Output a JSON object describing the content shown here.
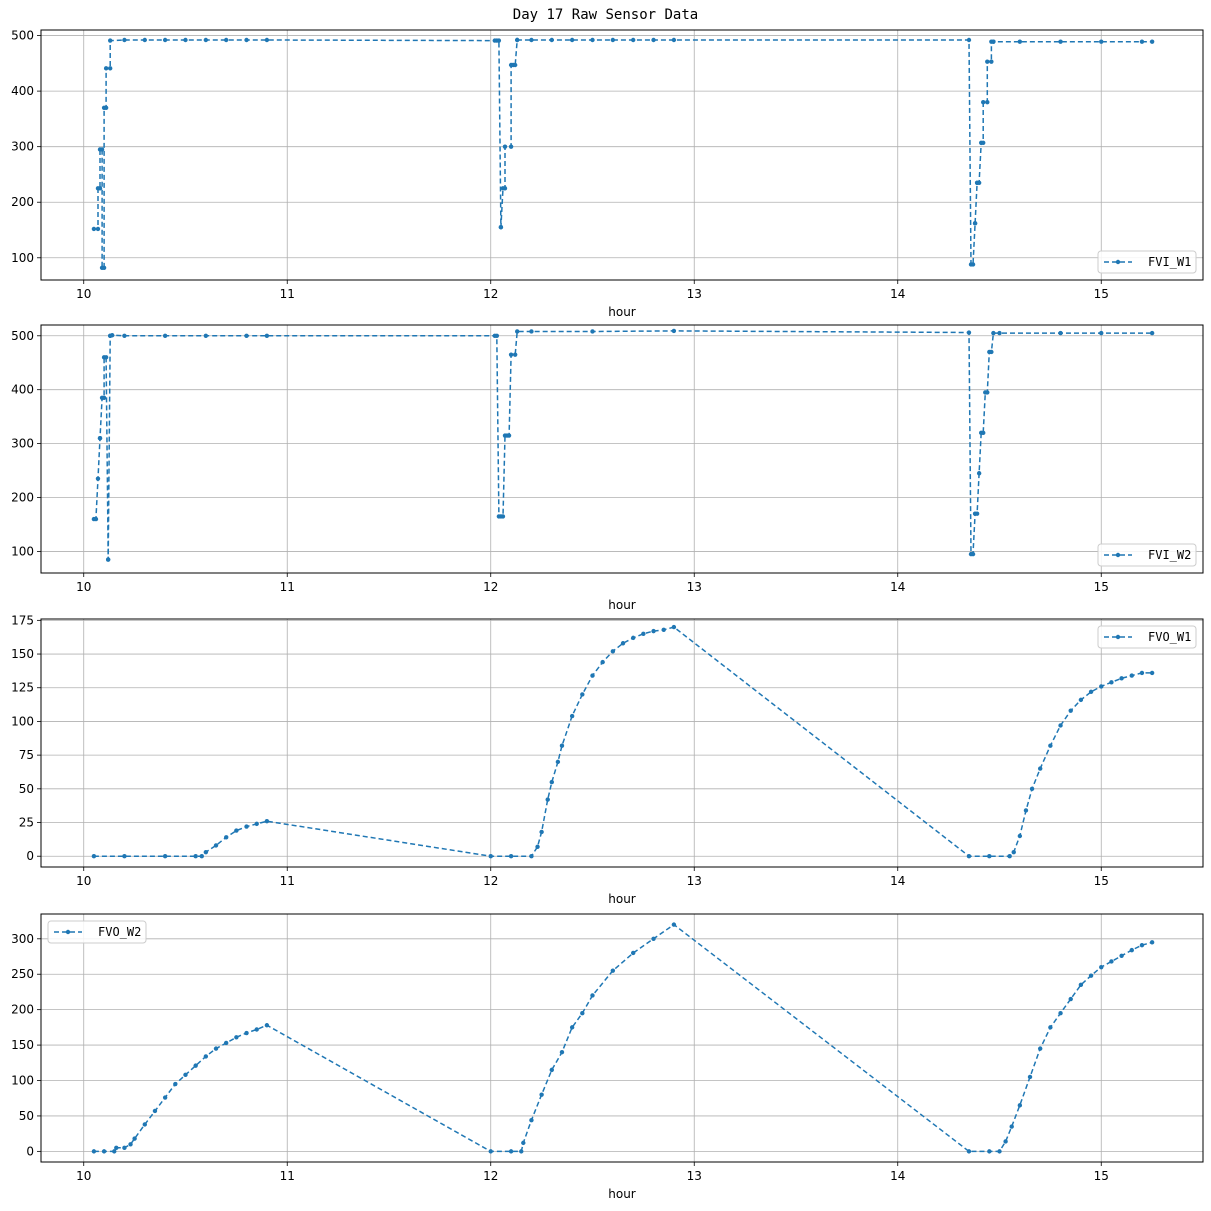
{
  "title": "Day 17 Raw Sensor Data",
  "colors": {
    "series": "#1f77b4",
    "grid": "#b0b0b0",
    "axes": "#000000"
  },
  "chart_data": [
    {
      "type": "line",
      "xlabel": "hour",
      "xlim": [
        9.79,
        15.5
      ],
      "ylim": [
        60,
        510
      ],
      "xticks": [
        10,
        11,
        12,
        13,
        14,
        15
      ],
      "yticks": [
        100,
        200,
        300,
        400,
        500
      ],
      "grid": true,
      "legend_position": "lower-right",
      "series": [
        {
          "name": "FVI_W1",
          "style": "dashed-dot-marker",
          "x": [
            10.05,
            10.07,
            10.07,
            10.08,
            10.08,
            10.09,
            10.09,
            10.1,
            10.1,
            10.11,
            10.11,
            10.13,
            10.13,
            10.2,
            10.3,
            10.4,
            10.5,
            10.6,
            10.7,
            10.8,
            10.9,
            12.02,
            12.03,
            12.04,
            12.05,
            12.05,
            12.06,
            12.07,
            12.07,
            12.1,
            12.1,
            12.11,
            12.12,
            12.13,
            12.13,
            12.2,
            12.3,
            12.4,
            12.5,
            12.6,
            12.7,
            12.8,
            12.9,
            14.35,
            14.36,
            14.37,
            14.38,
            14.38,
            14.39,
            14.39,
            14.4,
            14.41,
            14.42,
            14.42,
            14.44,
            14.44,
            14.46,
            14.46,
            14.47,
            14.47,
            14.6,
            14.8,
            15.0,
            15.2,
            15.25
          ],
          "y": [
            152,
            152,
            225,
            225,
            295,
            295,
            82,
            82,
            370,
            370,
            441,
            441,
            491,
            492,
            492,
            492,
            492,
            492,
            492,
            492,
            492,
            491,
            491,
            491,
            155,
            155,
            225,
            225,
            300,
            300,
            447,
            447,
            447,
            492,
            492,
            492,
            492,
            492,
            492,
            492,
            492,
            492,
            492,
            492,
            88,
            88,
            162,
            162,
            235,
            235,
            235,
            307,
            307,
            380,
            380,
            453,
            453,
            489,
            489,
            489,
            489,
            489,
            489,
            489,
            489
          ]
        }
      ]
    },
    {
      "type": "line",
      "xlabel": "hour",
      "xlim": [
        9.79,
        15.5
      ],
      "ylim": [
        60,
        520
      ],
      "xticks": [
        10,
        11,
        12,
        13,
        14,
        15
      ],
      "yticks": [
        100,
        200,
        300,
        400,
        500
      ],
      "grid": true,
      "legend_position": "lower-right",
      "series": [
        {
          "name": "FVI_W2",
          "style": "dashed-dot-marker",
          "x": [
            10.05,
            10.06,
            10.07,
            10.08,
            10.08,
            10.09,
            10.1,
            10.1,
            10.11,
            10.12,
            10.12,
            10.13,
            10.13,
            10.14,
            10.2,
            10.4,
            10.6,
            10.8,
            10.9,
            12.02,
            12.03,
            12.04,
            12.05,
            12.06,
            12.07,
            12.08,
            12.09,
            12.1,
            12.12,
            12.13,
            12.2,
            12.5,
            12.9,
            14.35,
            14.36,
            14.37,
            14.38,
            14.39,
            14.4,
            14.41,
            14.42,
            14.43,
            14.44,
            14.45,
            14.46,
            14.47,
            14.5,
            14.8,
            15.0,
            15.25
          ],
          "y": [
            160,
            160,
            235,
            310,
            310,
            385,
            385,
            460,
            460,
            85,
            85,
            500,
            500,
            501,
            500,
            500,
            500,
            500,
            500,
            500,
            500,
            165,
            165,
            165,
            315,
            315,
            315,
            465,
            465,
            508,
            508,
            508,
            509,
            506,
            95,
            95,
            170,
            170,
            245,
            320,
            320,
            395,
            395,
            470,
            470,
            505,
            505,
            505,
            505,
            505
          ]
        }
      ]
    },
    {
      "type": "line",
      "xlabel": "hour",
      "xlim": [
        9.79,
        15.5
      ],
      "ylim": [
        -8,
        176
      ],
      "xticks": [
        10,
        11,
        12,
        13,
        14,
        15
      ],
      "yticks": [
        0,
        25,
        50,
        75,
        100,
        125,
        150,
        175
      ],
      "grid": true,
      "legend_position": "top-right",
      "series": [
        {
          "name": "FVO_W1",
          "style": "dashed-dot-marker",
          "x": [
            10.05,
            10.2,
            10.4,
            10.55,
            10.58,
            10.6,
            10.65,
            10.7,
            10.75,
            10.8,
            10.85,
            10.9,
            12.0,
            12.1,
            12.2,
            12.23,
            12.25,
            12.28,
            12.3,
            12.33,
            12.35,
            12.4,
            12.45,
            12.5,
            12.55,
            12.6,
            12.65,
            12.7,
            12.75,
            12.8,
            12.85,
            12.9,
            14.35,
            14.45,
            14.55,
            14.57,
            14.6,
            14.63,
            14.66,
            14.7,
            14.75,
            14.8,
            14.85,
            14.9,
            14.95,
            15.0,
            15.05,
            15.1,
            15.15,
            15.2,
            15.25
          ],
          "y": [
            0,
            0,
            0,
            0,
            0,
            3,
            8,
            14,
            19,
            22,
            24,
            26,
            0,
            0,
            0,
            7,
            18,
            42,
            55,
            70,
            82,
            104,
            120,
            134,
            144,
            152,
            158,
            162,
            165,
            167,
            168,
            170,
            0,
            0,
            0,
            3,
            15,
            34,
            50,
            65,
            82,
            97,
            108,
            116,
            122,
            126,
            129,
            132,
            134,
            136,
            136
          ]
        }
      ]
    },
    {
      "type": "line",
      "xlabel": "hour",
      "xlim": [
        9.79,
        15.5
      ],
      "ylim": [
        -15,
        335
      ],
      "xticks": [
        10,
        11,
        12,
        13,
        14,
        15
      ],
      "yticks": [
        0,
        50,
        100,
        150,
        200,
        250,
        300
      ],
      "grid": true,
      "legend_position": "top-left",
      "series": [
        {
          "name": "FVO_W2",
          "style": "dashed-dot-marker",
          "x": [
            10.05,
            10.1,
            10.15,
            10.16,
            10.2,
            10.23,
            10.25,
            10.3,
            10.35,
            10.4,
            10.45,
            10.5,
            10.55,
            10.6,
            10.65,
            10.7,
            10.75,
            10.8,
            10.85,
            10.9,
            12.0,
            12.1,
            12.15,
            12.16,
            12.2,
            12.25,
            12.3,
            12.35,
            12.4,
            12.45,
            12.5,
            12.6,
            12.7,
            12.8,
            12.9,
            14.35,
            14.45,
            14.5,
            14.53,
            14.56,
            14.6,
            14.65,
            14.7,
            14.75,
            14.8,
            14.85,
            14.9,
            14.95,
            15.0,
            15.05,
            15.1,
            15.15,
            15.2,
            15.25
          ],
          "y": [
            0,
            0,
            0,
            5,
            5,
            10,
            18,
            38,
            57,
            76,
            95,
            108,
            121,
            134,
            145,
            153,
            161,
            167,
            172,
            178,
            0,
            0,
            0,
            12,
            44,
            80,
            115,
            140,
            175,
            195,
            220,
            255,
            280,
            300,
            320,
            0,
            0,
            0,
            14,
            35,
            65,
            105,
            145,
            175,
            195,
            215,
            235,
            248,
            260,
            268,
            276,
            284,
            291,
            295
          ]
        }
      ]
    }
  ]
}
